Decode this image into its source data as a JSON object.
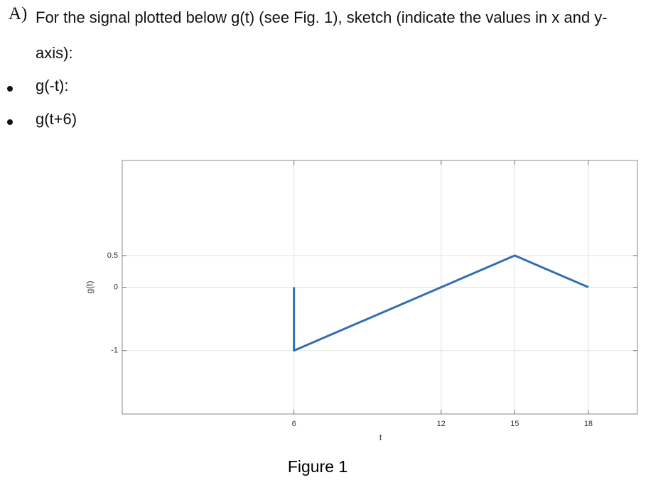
{
  "question": {
    "label": "A)",
    "text": "For the signal plotted below g(t) (see Fig. 1), sketch (indicate the values in x and y-axis):",
    "items": [
      "g(-t):",
      "g(t+6)"
    ]
  },
  "figure_caption": "Figure 1",
  "chart_data": {
    "type": "line",
    "x": [
      6,
      6,
      15,
      18
    ],
    "series": [
      {
        "color": "#3070b0",
        "values": [
          0,
          -1,
          0.5,
          0
        ]
      }
    ],
    "xlabel": "t",
    "ylabel": "g(t)",
    "xlim": [
      -1,
      20
    ],
    "ylim": [
      -2,
      2
    ],
    "xticks": [
      6,
      12,
      15,
      18
    ],
    "yticks": [
      -1,
      0,
      0.5
    ],
    "grid": true
  }
}
